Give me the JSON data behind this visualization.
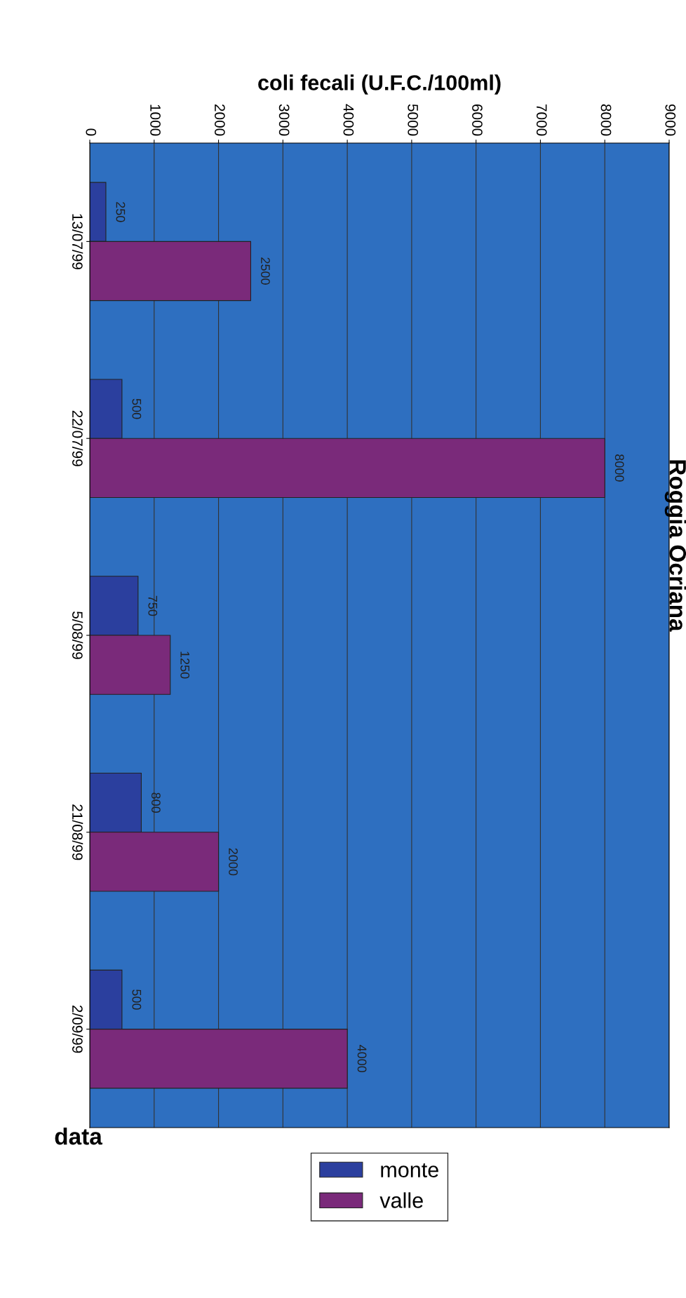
{
  "chart_data": {
    "type": "bar",
    "orientation": "horizontal",
    "title": "Roggia Ocriana",
    "xlabel": "coli fecali (U.F.C./100ml)",
    "ylabel": "data",
    "categories": [
      "13/07/99",
      "22/07/99",
      "5/08/99",
      "21/08/99",
      "2/09/99"
    ],
    "series": [
      {
        "name": "monte",
        "color": "#2b3f9e",
        "values": [
          250,
          500,
          750,
          800,
          500
        ]
      },
      {
        "name": "valle",
        "color": "#7a2a7a",
        "values": [
          2500,
          8000,
          1250,
          2000,
          4000
        ]
      }
    ],
    "xlim": [
      0,
      9000
    ],
    "xticks": [
      0,
      1000,
      2000,
      3000,
      4000,
      5000,
      6000,
      7000,
      8000,
      9000
    ],
    "grid": "x",
    "data_labels": true,
    "legend": "bottom"
  }
}
